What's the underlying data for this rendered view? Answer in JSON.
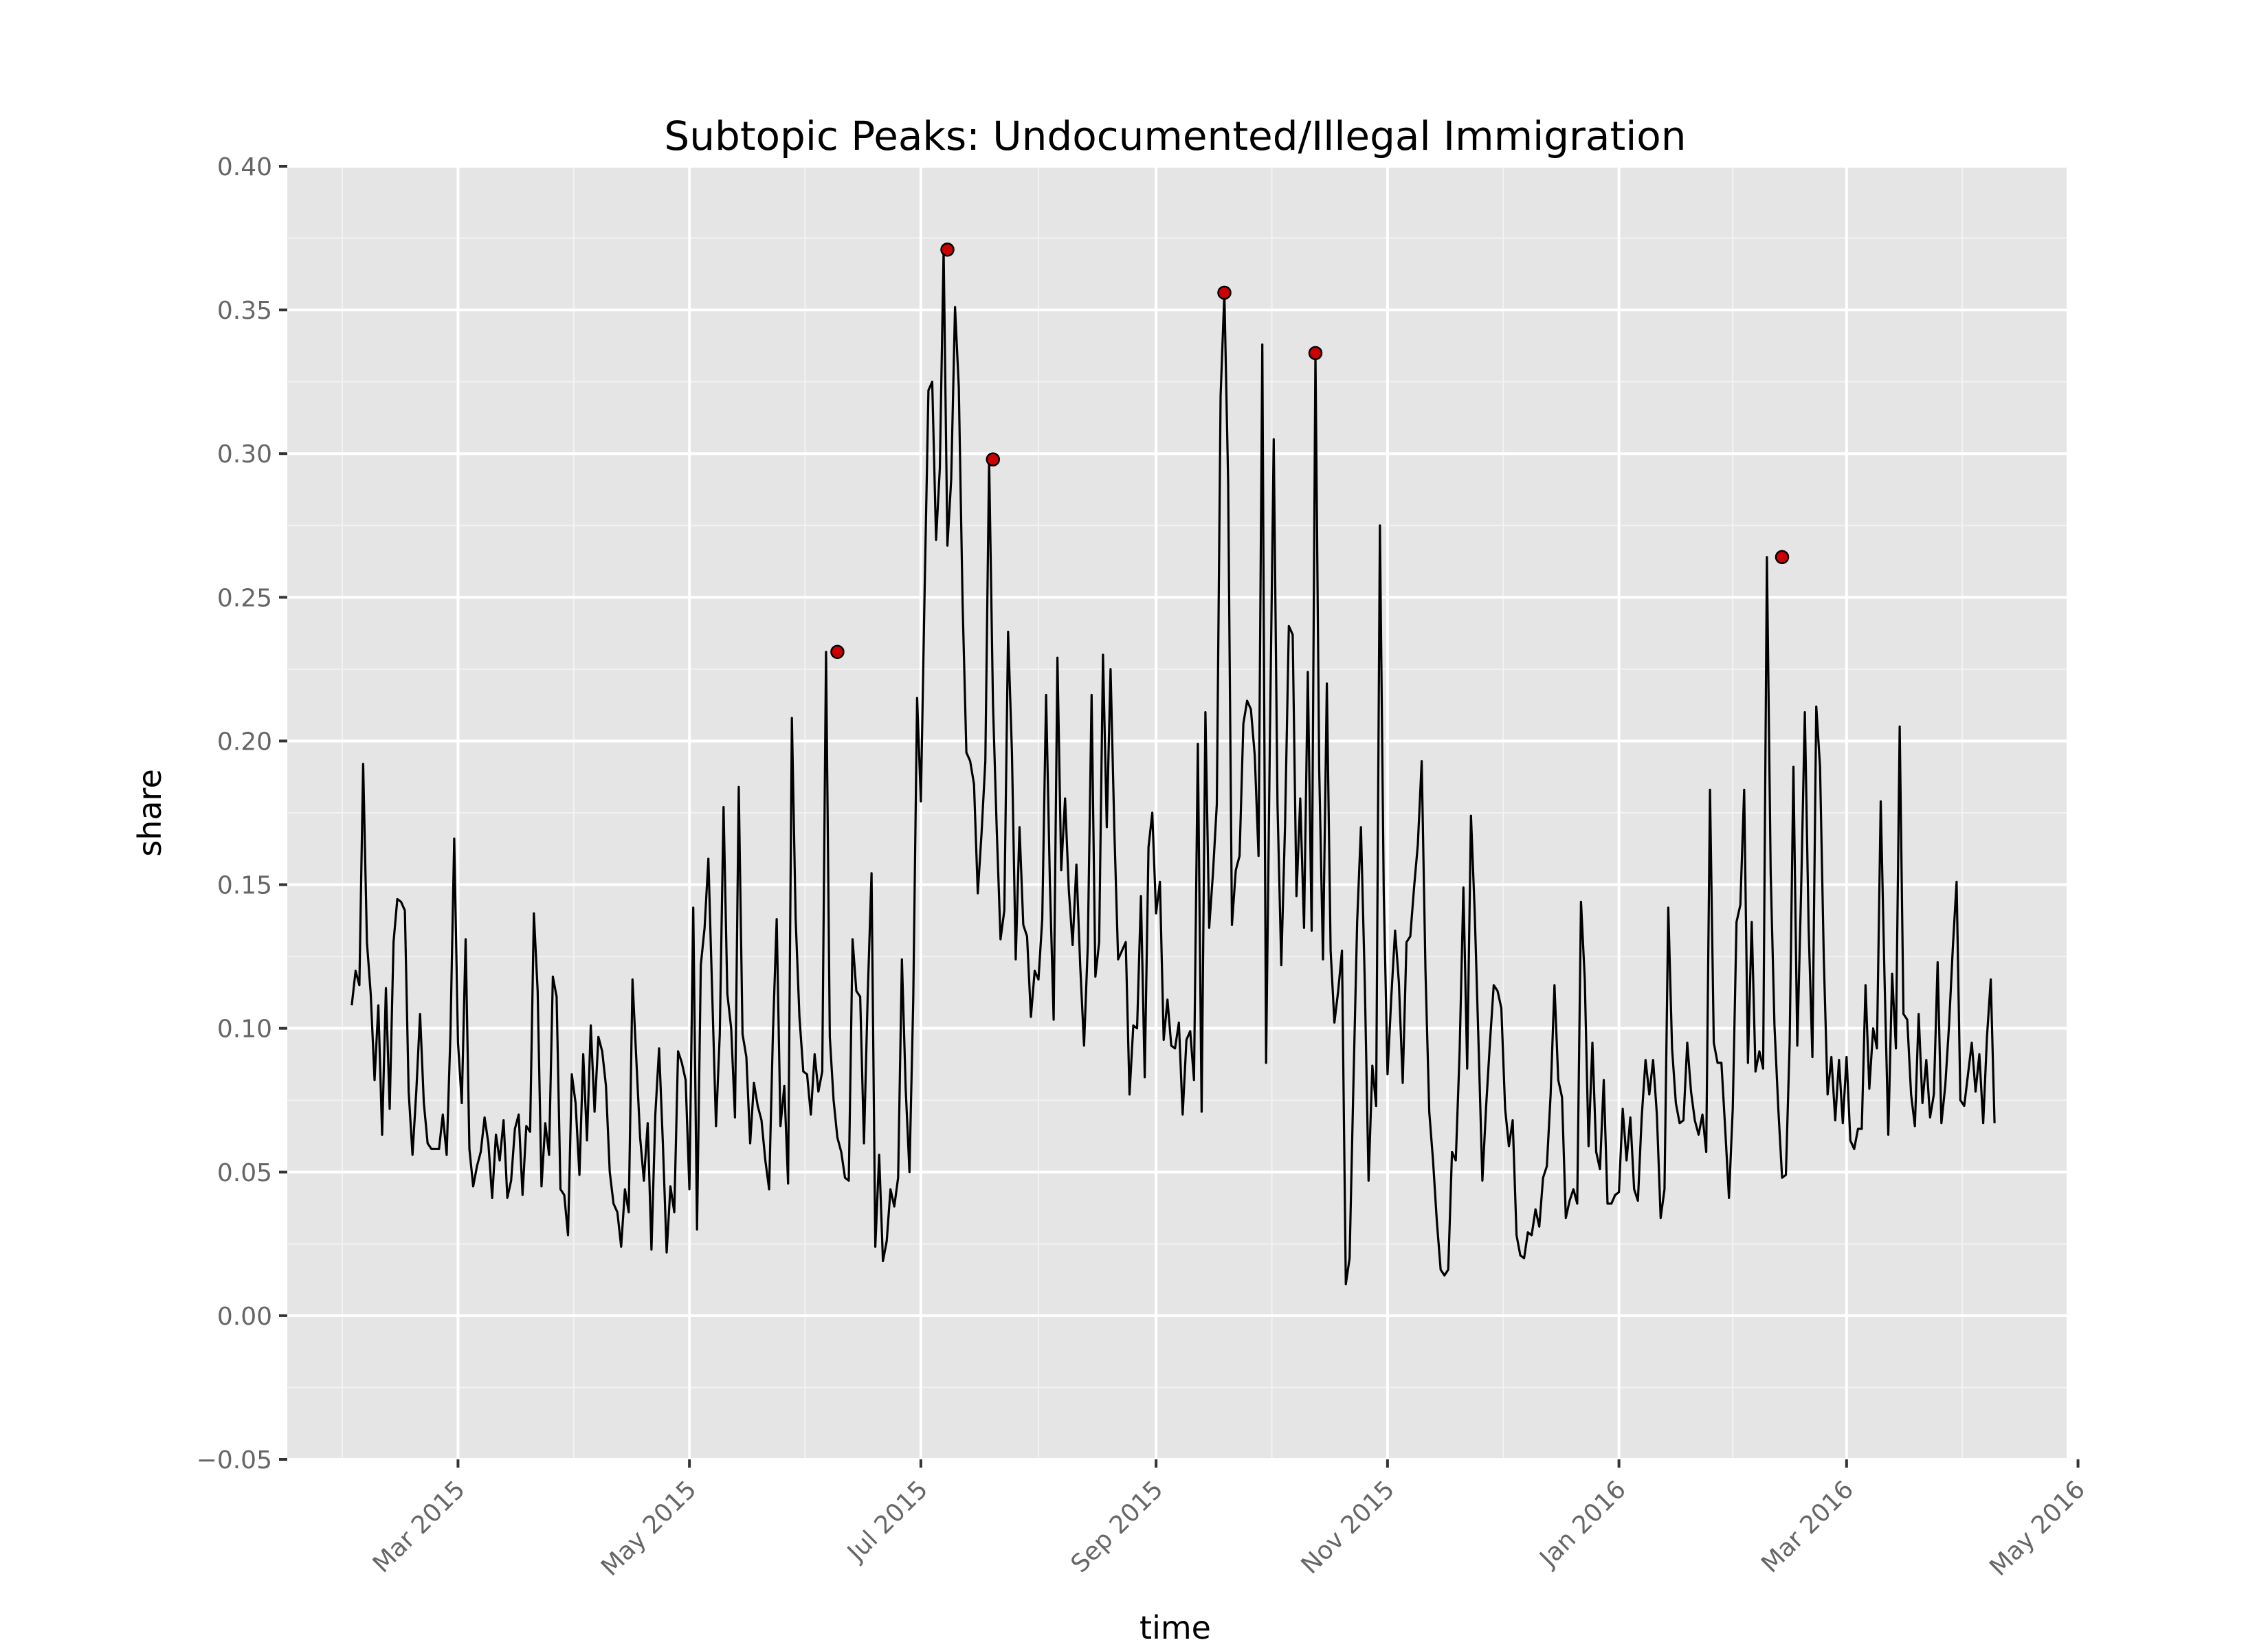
{
  "chart_data": {
    "type": "line",
    "title": "Subtopic Peaks: Undocumented/Illegal Immigration",
    "xlabel": "time",
    "ylabel": "share",
    "xlim": [
      "2015-01-15",
      "2016-04-28"
    ],
    "ylim": [
      -0.05,
      0.4
    ],
    "x_ticks": [
      "Mar 2015",
      "May 2015",
      "Jul 2015",
      "Sep 2015",
      "Nov 2015",
      "Jan 2016",
      "Mar 2016",
      "May 2016"
    ],
    "x_tick_dates": [
      "2015-03-01",
      "2015-05-01",
      "2015-07-01",
      "2015-09-01",
      "2015-11-01",
      "2016-01-01",
      "2016-03-01",
      "2016-05-01"
    ],
    "y_ticks": [
      "−0.05",
      "0.00",
      "0.05",
      "0.10",
      "0.15",
      "0.20",
      "0.25",
      "0.30",
      "0.35",
      "0.40"
    ],
    "y_tick_values": [
      -0.05,
      0.0,
      0.05,
      0.1,
      0.15,
      0.2,
      0.25,
      0.3,
      0.35,
      0.4
    ],
    "grid": true,
    "background": "#e5e5e5",
    "line_color": "#000000",
    "peak_color": "#cc0000",
    "series": [
      {
        "start_date": "2015-02-01",
        "values": [
          0.108,
          0.12,
          0.115,
          0.192,
          0.13,
          0.112,
          0.082,
          0.108,
          0.063,
          0.114,
          0.072,
          0.13,
          0.145,
          0.144,
          0.141,
          0.078,
          0.056,
          0.078,
          0.105,
          0.074,
          0.06,
          0.058,
          0.058,
          0.058,
          0.07,
          0.056,
          0.098,
          0.166,
          0.095,
          0.074,
          0.131,
          0.058,
          0.045,
          0.052,
          0.057,
          0.069,
          0.06,
          0.041,
          0.063,
          0.054,
          0.068,
          0.041,
          0.047,
          0.065,
          0.07,
          0.042,
          0.066,
          0.064,
          0.14,
          0.113,
          0.045,
          0.067,
          0.056,
          0.118,
          0.111,
          0.044,
          0.042,
          0.028,
          0.084,
          0.074,
          0.049,
          0.091,
          0.061,
          0.101,
          0.071,
          0.097,
          0.092,
          0.08,
          0.05,
          0.039,
          0.036,
          0.024,
          0.044,
          0.036,
          0.117,
          0.089,
          0.062,
          0.047,
          0.067,
          0.023,
          0.07,
          0.093,
          0.06,
          0.022,
          0.045,
          0.036,
          0.092,
          0.088,
          0.082,
          0.044,
          0.142,
          0.03,
          0.122,
          0.135,
          0.159,
          0.112,
          0.066,
          0.098,
          0.177,
          0.112,
          0.1,
          0.069,
          0.184,
          0.098,
          0.09,
          0.06,
          0.081,
          0.073,
          0.068,
          0.054,
          0.044,
          0.098,
          0.138,
          0.066,
          0.08,
          0.046,
          0.208,
          0.138,
          0.104,
          0.085,
          0.084,
          0.07,
          0.091,
          0.078,
          0.085,
          0.231,
          0.097,
          0.075,
          0.062,
          0.057,
          0.048,
          0.047,
          0.131,
          0.113,
          0.111,
          0.06,
          0.112,
          0.154,
          0.024,
          0.056,
          0.019,
          0.026,
          0.044,
          0.038,
          0.048,
          0.124,
          0.079,
          0.05,
          0.11,
          0.215,
          0.179,
          0.253,
          0.322,
          0.325,
          0.27,
          0.295,
          0.371,
          0.268,
          0.291,
          0.351,
          0.323,
          0.248,
          0.196,
          0.193,
          0.185,
          0.147,
          0.168,
          0.193,
          0.298,
          0.213,
          0.169,
          0.131,
          0.141,
          0.238,
          0.196,
          0.124,
          0.17,
          0.136,
          0.132,
          0.104,
          0.12,
          0.117,
          0.138,
          0.216,
          0.151,
          0.103,
          0.229,
          0.155,
          0.18,
          0.148,
          0.129,
          0.157,
          0.122,
          0.094,
          0.129,
          0.216,
          0.118,
          0.13,
          0.23,
          0.17,
          0.225,
          0.169,
          0.124,
          0.127,
          0.13,
          0.077,
          0.101,
          0.1,
          0.146,
          0.083,
          0.163,
          0.175,
          0.14,
          0.151,
          0.096,
          0.11,
          0.094,
          0.093,
          0.102,
          0.07,
          0.096,
          0.099,
          0.082,
          0.199,
          0.071,
          0.21,
          0.135,
          0.154,
          0.178,
          0.32,
          0.356,
          0.29,
          0.136,
          0.155,
          0.16,
          0.206,
          0.214,
          0.211,
          0.195,
          0.16,
          0.338,
          0.088,
          0.2,
          0.305,
          0.178,
          0.122,
          0.171,
          0.24,
          0.237,
          0.146,
          0.18,
          0.135,
          0.224,
          0.134,
          0.335,
          0.19,
          0.124,
          0.22,
          0.127,
          0.102,
          0.113,
          0.127,
          0.011,
          0.02,
          0.08,
          0.137,
          0.17,
          0.116,
          0.047,
          0.087,
          0.073,
          0.275,
          0.147,
          0.084,
          0.111,
          0.134,
          0.116,
          0.081,
          0.13,
          0.132,
          0.149,
          0.164,
          0.193,
          0.12,
          0.071,
          0.054,
          0.033,
          0.016,
          0.014,
          0.016,
          0.057,
          0.054,
          0.092,
          0.149,
          0.086,
          0.174,
          0.14,
          0.094,
          0.047,
          0.073,
          0.095,
          0.115,
          0.113,
          0.107,
          0.072,
          0.059,
          0.068,
          0.028,
          0.021,
          0.02,
          0.029,
          0.028,
          0.037,
          0.031,
          0.048,
          0.052,
          0.077,
          0.115,
          0.082,
          0.076,
          0.034,
          0.04,
          0.044,
          0.039,
          0.144,
          0.117,
          0.059,
          0.095,
          0.057,
          0.051,
          0.082,
          0.039,
          0.039,
          0.042,
          0.043,
          0.072,
          0.054,
          0.069,
          0.044,
          0.04,
          0.069,
          0.089,
          0.077,
          0.089,
          0.07,
          0.034,
          0.044,
          0.142,
          0.093,
          0.074,
          0.067,
          0.068,
          0.095,
          0.078,
          0.068,
          0.063,
          0.07,
          0.057,
          0.183,
          0.095,
          0.088,
          0.088,
          0.065,
          0.041,
          0.072,
          0.137,
          0.143,
          0.183,
          0.088,
          0.137,
          0.085,
          0.092,
          0.086,
          0.264,
          0.154,
          0.101,
          0.072,
          0.048,
          0.049,
          0.095,
          0.191,
          0.094,
          0.147,
          0.21,
          0.135,
          0.09,
          0.212,
          0.191,
          0.124,
          0.077,
          0.09,
          0.068,
          0.089,
          0.067,
          0.09,
          0.061,
          0.058,
          0.065,
          0.065,
          0.115,
          0.079,
          0.1,
          0.093,
          0.179,
          0.118,
          0.063,
          0.119,
          0.093,
          0.205,
          0.105,
          0.103,
          0.077,
          0.066,
          0.105,
          0.074,
          0.089,
          0.069,
          0.077,
          0.123,
          0.067,
          0.08,
          0.101,
          0.128,
          0.151,
          0.075,
          0.073,
          0.084,
          0.095,
          0.078,
          0.091,
          0.067,
          0.097,
          0.117,
          0.067
        ]
      }
    ],
    "peaks": [
      {
        "x": "2015-06-09",
        "y": 0.231
      },
      {
        "x": "2015-07-08",
        "y": 0.371
      },
      {
        "x": "2015-07-20",
        "y": 0.298
      },
      {
        "x": "2015-09-19",
        "y": 0.356
      },
      {
        "x": "2015-10-13",
        "y": 0.335
      },
      {
        "x": "2016-02-13",
        "y": 0.264
      }
    ]
  }
}
